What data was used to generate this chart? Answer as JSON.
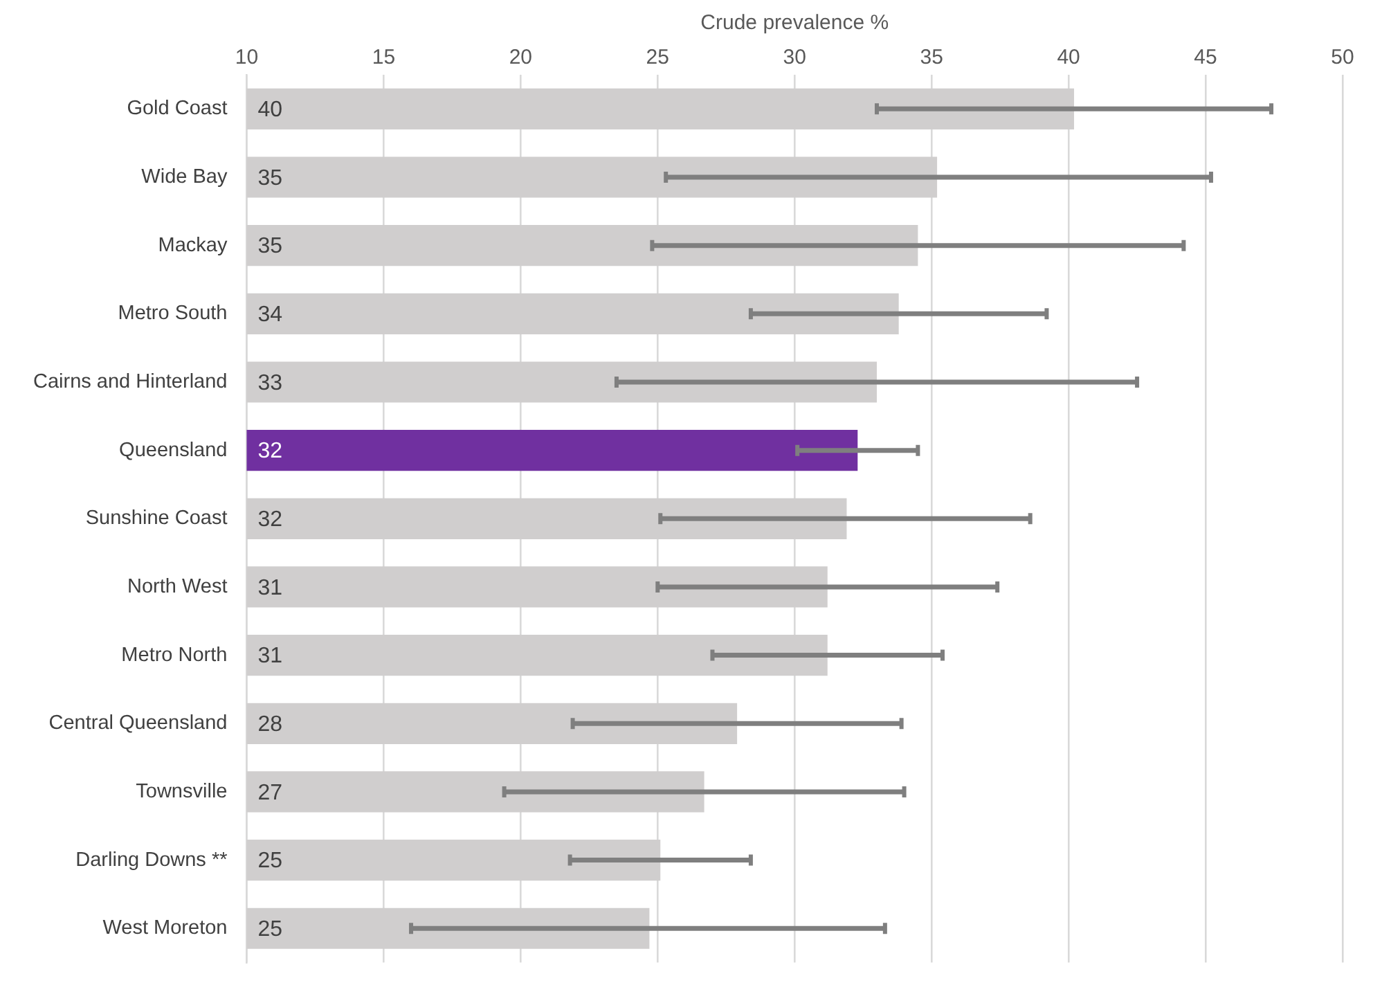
{
  "chart_data": {
    "type": "bar",
    "orientation": "horizontal",
    "xlabel": "Crude prevalence %",
    "categories": [
      "Gold Coast",
      "Wide Bay",
      "Mackay",
      "Metro South",
      "Cairns and Hinterland",
      "Queensland",
      "Sunshine Coast",
      "North West",
      "Metro North",
      "Central Queensland",
      "Townsville",
      "Darling Downs **",
      "West Moreton"
    ],
    "values": [
      40.2,
      35.2,
      34.5,
      33.8,
      33.0,
      32.3,
      31.9,
      31.2,
      31.2,
      27.9,
      26.7,
      25.1,
      24.7
    ],
    "value_labels": [
      "40",
      "35",
      "35",
      "34",
      "33",
      "32",
      "32",
      "31",
      "31",
      "28",
      "27",
      "25",
      "25"
    ],
    "colors": [
      "#d0cece",
      "#d0cece",
      "#d0cece",
      "#d0cece",
      "#d0cece",
      "#7030a0",
      "#d0cece",
      "#d0cece",
      "#d0cece",
      "#d0cece",
      "#d0cece",
      "#d0cece",
      "#d0cece"
    ],
    "errors": [
      [
        33.0,
        47.4
      ],
      [
        25.3,
        45.2
      ],
      [
        24.8,
        44.2
      ],
      [
        28.4,
        39.2
      ],
      [
        23.5,
        42.5
      ],
      [
        30.1,
        34.5
      ],
      [
        25.1,
        38.6
      ],
      [
        25.0,
        37.4
      ],
      [
        27.0,
        35.4
      ],
      [
        21.9,
        33.9
      ],
      [
        19.4,
        34.0
      ],
      [
        21.8,
        28.4
      ],
      [
        16.0,
        33.3
      ]
    ],
    "xlim": [
      10,
      50
    ],
    "xticks": [
      10,
      15,
      20,
      25,
      30,
      35,
      40,
      45,
      50
    ],
    "grid": "x",
    "legend": false
  }
}
